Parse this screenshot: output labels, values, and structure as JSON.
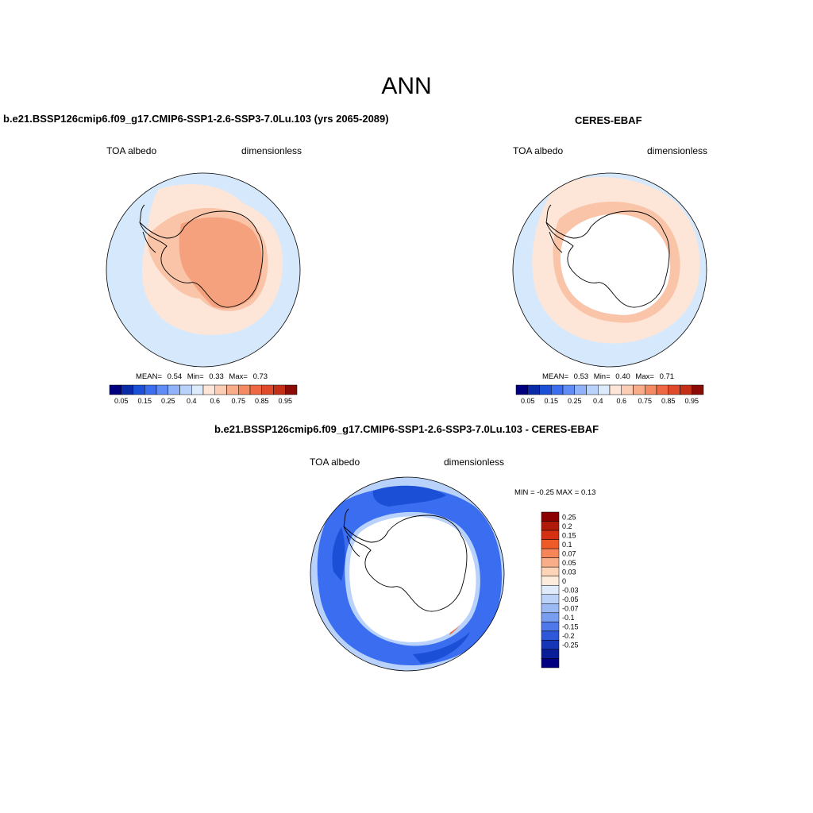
{
  "page": {
    "main_title": "ANN"
  },
  "panels": [
    {
      "id": "model",
      "title": "b.e21.BSSP126cmip6.f09_g17.CMIP6-SSP1-2.6-SSP3-7.0Lu.103 (yrs 2065-2089)",
      "left_label": "TOA albedo",
      "right_label": "dimensionless",
      "stats": {
        "mean_label": "MEAN=",
        "mean": "0.54",
        "min_label": "Min=",
        "min": "0.33",
        "max_label": "Max=",
        "max": "0.73"
      }
    },
    {
      "id": "obs",
      "title": "CERES-EBAF",
      "left_label": "TOA albedo",
      "right_label": "dimensionless",
      "stats": {
        "mean_label": "MEAN=",
        "mean": "0.53",
        "min_label": "Min=",
        "min": "0.40",
        "max_label": "Max=",
        "max": "0.71"
      }
    },
    {
      "id": "diff",
      "title": "b.e21.BSSP126cmip6.f09_g17.CMIP6-SSP1-2.6-SSP3-7.0Lu.103 - CERES-EBAF",
      "left_label": "TOA albedo",
      "right_label": "dimensionless",
      "minmax_text": "MIN =  -0.25 MAX =   0.13"
    }
  ],
  "colorbar_horizontal": {
    "colors": [
      "#00007f",
      "#0a2ba8",
      "#1a4fd6",
      "#3a6df0",
      "#5f8cf5",
      "#8fb2f8",
      "#b8d2fb",
      "#dcebfc",
      "#fde6d8",
      "#fbcdb4",
      "#f8ac8a",
      "#f48a62",
      "#ee6844",
      "#df4a2a",
      "#c42f18",
      "#8b0c07"
    ],
    "tick_labels": [
      "0.05",
      "0.15",
      "0.25",
      "0.4",
      "0.6",
      "0.75",
      "0.85",
      "0.95"
    ]
  },
  "colorbar_vertical": {
    "colors": [
      "#8b0000",
      "#b01a0a",
      "#d53014",
      "#ee5a28",
      "#f7855a",
      "#f9ad88",
      "#fcd4b8",
      "#fdecdc",
      "#dfeafb",
      "#bcd2f7",
      "#9bbaf4",
      "#799ef0",
      "#4f79ea",
      "#2e57d9",
      "#1636b8",
      "#0a1d98",
      "#000080"
    ],
    "tick_labels": [
      "0.25",
      "0.2",
      "0.15",
      "0.1",
      "0.07",
      "0.05",
      "0.03",
      "0",
      "-0.03",
      "-0.05",
      "-0.07",
      "-0.1",
      "-0.15",
      "-0.2",
      "-0.25"
    ]
  },
  "map_colors": {
    "ocean_light_blue": "#d6e8fb",
    "pale_peach": "#fde6d8",
    "light_salmon": "#f9c4a8",
    "salmon": "#f5a17d",
    "diff_blue": "#3a6df0",
    "diff_dark_blue": "#1a4fd6",
    "diff_mid_blue": "#6f98f4",
    "diff_light_blue": "#b8d2fb",
    "diff_red": "#ee6844",
    "land": "#ffffff",
    "coast": "#000000"
  }
}
